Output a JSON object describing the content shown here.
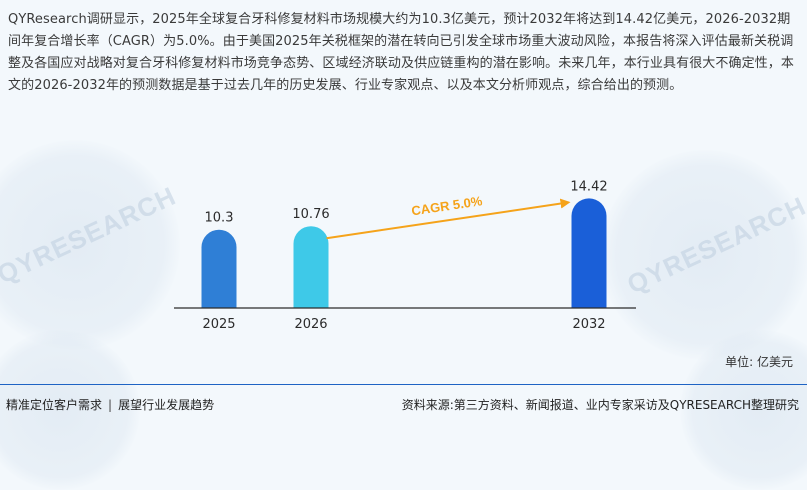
{
  "description": "QYResearch调研显示，2025年全球复合牙科修复材料市场规模大约为10.3亿美元，预计2032年将达到14.42亿美元，2026-2032期间年复合增长率（CAGR）为5.0%。由于美国2025年关税框架的潜在转向已引发全球市场重大波动风险，本报告将深入评估最新关税调整及各国应对战略对复合牙科修复材料市场竞争态势、区域经济联动及供应链重构的潜在影响。未来几年，本行业具有很大不确定性，本文的2026-2032年的预测数据是基于过去几年的历史发展、行业专家观点、以及本文分析师观点，综合给出的预测。",
  "watermark": {
    "text": "QYRESEARCH"
  },
  "chart_data": {
    "type": "bar",
    "categories": [
      "2025",
      "2026",
      "2032"
    ],
    "values": [
      10.3,
      10.76,
      14.42
    ],
    "value_labels": [
      "10.3",
      "10.76",
      "14.42"
    ],
    "bar_colors": [
      "#2f7fd6",
      "#3ec9e8",
      "#1a5fd8"
    ],
    "annotation": {
      "text": "CAGR 5.0%",
      "from": "2026",
      "to": "2032",
      "color": "#f5a31a"
    },
    "ylim": [
      0,
      16
    ],
    "title": "",
    "xlabel": "",
    "ylabel": ""
  },
  "unit_label": "单位: 亿美元",
  "footer": {
    "left_a": "精准定位客户需求",
    "separator": "|",
    "left_b": "展望行业发展趋势",
    "right": "资料来源:第三方资料、新闻报道、业内专家采访及QYRESEARCH整理研究"
  }
}
